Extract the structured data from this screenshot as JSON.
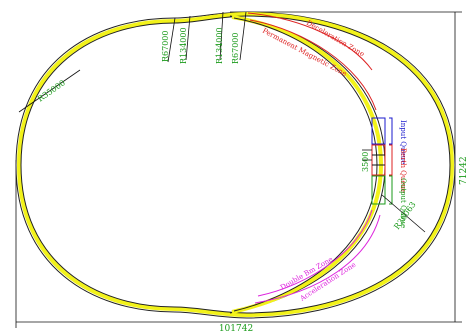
{
  "colors": {
    "track": "#f2f21a",
    "track_outline": "#222222",
    "dimension": "#111111",
    "dimension_text": "#1a9a1a",
    "zone_red": "#dd2222",
    "zone_magenta": "#dd22dd",
    "queue_blue": "#1a1acc",
    "queue_red": "#dd2222",
    "queue_green": "#1a9a1a"
  },
  "dimensions": {
    "overall_width": "101742",
    "overall_height": "71242",
    "left_radius": "R35000",
    "lower_right_radius": "R36063",
    "gap_1": "3500"
  },
  "top_labels": {
    "r1": "R67000",
    "r2": "R134000",
    "r3": "R134000",
    "r4": "R67000"
  },
  "zones": {
    "deceleration": "Deceleration Zone",
    "permanent_magnetic": "Permanent Magnetic Zone",
    "double_bm": "Double Bm Zone",
    "acceleration": "Acceleration Zone"
  },
  "queues": {
    "input": "Input Queue",
    "berth": "Berth Queue",
    "output": "Output Queue"
  }
}
